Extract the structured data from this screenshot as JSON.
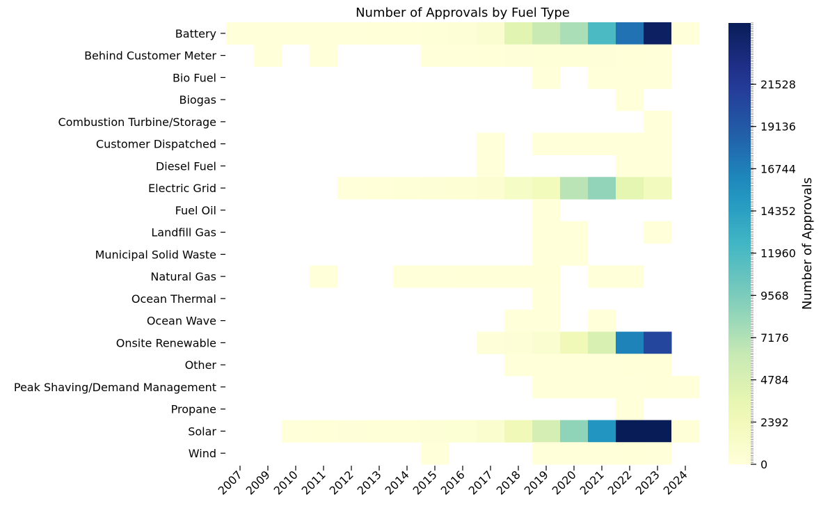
{
  "chart_data": {
    "type": "heatmap",
    "title": "Number of Approvals by Fuel Type",
    "xlabel": "",
    "ylabel": "",
    "colorbar_label": "Number of Approvals",
    "colormap": "YlGnBu",
    "vmin": 0,
    "vmax": 25000,
    "colorbar_ticks": [
      0,
      2392,
      4784,
      7176,
      9568,
      11960,
      14352,
      16744,
      19136,
      21528
    ],
    "colors": {
      "missing": "#ffffff",
      "low": "#ffffd9",
      "high": "#081d58"
    },
    "x_categories": [
      "2007",
      "2009",
      "2010",
      "2011",
      "2012",
      "2013",
      "2014",
      "2015",
      "2016",
      "2017",
      "2018",
      "2019",
      "2020",
      "2021",
      "2022",
      "2023",
      "2024"
    ],
    "y_categories": [
      "Battery",
      "Behind Customer Meter",
      "Bio Fuel",
      "Biogas",
      "Combustion Turbine/Storage",
      "Customer Dispatched",
      "Diesel Fuel",
      "Electric Grid",
      "Fuel Oil",
      "Landfill Gas",
      "Municipal Solid Waste",
      "Natural Gas",
      "Ocean Thermal",
      "Ocean Wave",
      "Onsite Renewable",
      "Other",
      "Peak Shaving/Demand Management",
      "Propane",
      "Solar",
      "Wind"
    ],
    "values": [
      [
        5,
        5,
        10,
        15,
        20,
        40,
        80,
        150,
        300,
        800,
        4000,
        6000,
        7500,
        12000,
        17500,
        24500,
        30
      ],
      [
        null,
        1,
        null,
        1,
        null,
        null,
        null,
        5,
        10,
        50,
        100,
        200,
        150,
        100,
        80,
        20,
        null
      ],
      [
        null,
        null,
        null,
        null,
        null,
        null,
        null,
        null,
        null,
        null,
        null,
        5,
        null,
        10,
        20,
        15,
        null
      ],
      [
        null,
        null,
        null,
        null,
        null,
        null,
        null,
        null,
        null,
        null,
        null,
        null,
        null,
        null,
        5,
        null,
        null
      ],
      [
        null,
        null,
        null,
        null,
        null,
        null,
        null,
        null,
        null,
        null,
        null,
        null,
        null,
        null,
        null,
        5,
        null
      ],
      [
        null,
        null,
        null,
        null,
        null,
        null,
        null,
        null,
        null,
        5,
        null,
        10,
        15,
        20,
        25,
        10,
        null
      ],
      [
        null,
        null,
        null,
        null,
        null,
        null,
        null,
        null,
        null,
        3,
        null,
        null,
        null,
        null,
        10,
        20,
        null
      ],
      [
        null,
        null,
        null,
        null,
        20,
        50,
        150,
        250,
        400,
        600,
        1500,
        2300,
        6800,
        8600,
        3800,
        2200,
        null
      ],
      [
        null,
        null,
        null,
        null,
        null,
        null,
        null,
        null,
        null,
        null,
        null,
        5,
        null,
        null,
        null,
        null,
        null
      ],
      [
        null,
        null,
        null,
        null,
        null,
        null,
        null,
        null,
        null,
        null,
        null,
        5,
        5,
        null,
        null,
        5,
        null
      ],
      [
        null,
        null,
        null,
        null,
        null,
        null,
        null,
        null,
        null,
        null,
        null,
        5,
        5,
        null,
        null,
        null,
        null
      ],
      [
        null,
        null,
        null,
        5,
        null,
        null,
        20,
        30,
        40,
        50,
        60,
        50,
        null,
        30,
        20,
        null,
        null
      ],
      [
        null,
        null,
        null,
        null,
        null,
        null,
        null,
        null,
        null,
        null,
        null,
        5,
        null,
        null,
        null,
        null,
        null
      ],
      [
        null,
        null,
        null,
        null,
        null,
        null,
        null,
        null,
        null,
        null,
        5,
        5,
        null,
        5,
        null,
        null,
        null
      ],
      [
        null,
        null,
        null,
        null,
        null,
        null,
        null,
        null,
        null,
        100,
        300,
        800,
        2600,
        4800,
        16500,
        20500,
        null
      ],
      [
        null,
        null,
        null,
        null,
        null,
        null,
        null,
        null,
        null,
        null,
        5,
        10,
        20,
        30,
        40,
        50,
        null
      ],
      [
        null,
        null,
        null,
        null,
        null,
        null,
        null,
        null,
        null,
        null,
        null,
        5,
        10,
        20,
        30,
        40,
        20
      ],
      [
        null,
        null,
        null,
        null,
        null,
        null,
        null,
        null,
        null,
        null,
        null,
        null,
        null,
        null,
        5,
        null,
        null
      ],
      [
        null,
        null,
        10,
        50,
        100,
        150,
        200,
        300,
        500,
        900,
        2600,
        5200,
        8700,
        15200,
        25000,
        25000,
        150
      ],
      [
        null,
        null,
        null,
        null,
        null,
        null,
        null,
        5,
        null,
        null,
        null,
        10,
        20,
        30,
        40,
        20,
        null
      ]
    ]
  }
}
